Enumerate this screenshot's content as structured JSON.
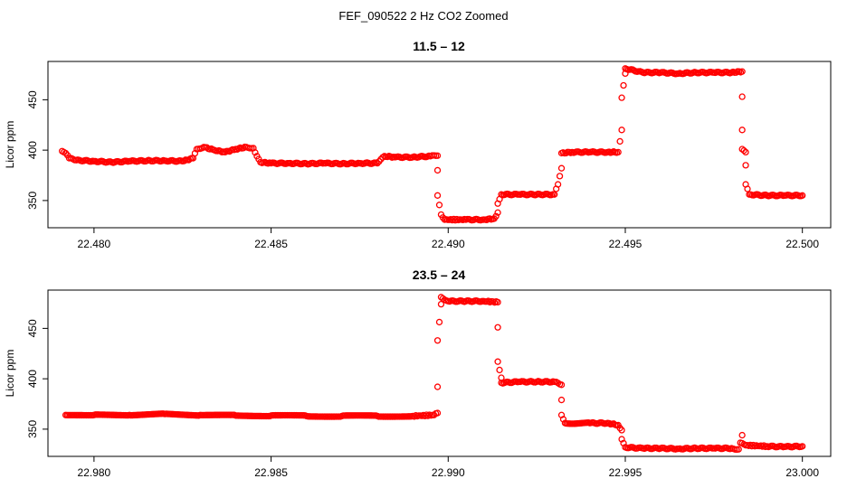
{
  "figure": {
    "suptitle": "FEF_090522  2 Hz CO2 Zoomed"
  },
  "chart_data": [
    {
      "type": "scatter",
      "title": "11.5 – 12",
      "xlabel": "",
      "ylabel": "Licor ppm",
      "xlim": [
        22.4787,
        22.5008
      ],
      "ylim": [
        323,
        488
      ],
      "x_ticks": [
        "22.480",
        "22.485",
        "22.490",
        "22.495",
        "22.500"
      ],
      "y_ticks": [
        "350",
        "400",
        "450"
      ],
      "grid": false,
      "marker": "open-circle",
      "color": "#ff0000",
      "series": [
        {
          "points": [
            [
              22.4791,
              399
            ],
            [
              22.4792,
              397
            ],
            [
              22.4793,
              392
            ],
            [
              22.4795,
              390
            ],
            [
              22.48,
              389
            ],
            [
              22.4805,
              388
            ],
            [
              22.481,
              389
            ],
            [
              22.4815,
              389.5
            ],
            [
              22.482,
              389.5
            ],
            [
              22.4825,
              389
            ],
            [
              22.4828,
              392
            ],
            [
              22.4829,
              401
            ],
            [
              22.4831,
              403
            ],
            [
              22.4834,
              400
            ],
            [
              22.4837,
              398
            ],
            [
              22.484,
              401
            ],
            [
              22.4843,
              403
            ],
            [
              22.4845,
              402
            ],
            [
              22.4846,
              394
            ],
            [
              22.4847,
              388
            ],
            [
              22.485,
              387
            ],
            [
              22.4855,
              387
            ],
            [
              22.486,
              386.5
            ],
            [
              22.4865,
              387
            ],
            [
              22.487,
              386.5
            ],
            [
              22.4875,
              387
            ],
            [
              22.488,
              387
            ],
            [
              22.4882,
              394
            ],
            [
              22.4885,
              393
            ],
            [
              22.489,
              393
            ],
            [
              22.4895,
              394
            ],
            [
              22.4897,
              394.5
            ],
            [
              22.4897,
              380
            ],
            [
              22.4897,
              355
            ],
            [
              22.4898,
              336
            ],
            [
              22.4899,
              331
            ],
            [
              22.4905,
              331
            ],
            [
              22.491,
              331
            ],
            [
              22.4913,
              332
            ],
            [
              22.4914,
              338
            ],
            [
              22.4914,
              347
            ],
            [
              22.4915,
              356
            ],
            [
              22.492,
              356
            ],
            [
              22.4925,
              356
            ],
            [
              22.493,
              356
            ],
            [
              22.4931,
              366
            ],
            [
              22.4932,
              382
            ],
            [
              22.4932,
              397
            ],
            [
              22.4935,
              398
            ],
            [
              22.494,
              398
            ],
            [
              22.4945,
              398
            ],
            [
              22.4948,
              398
            ],
            [
              22.4949,
              420
            ],
            [
              22.4949,
              452
            ],
            [
              22.495,
              476
            ],
            [
              22.495,
              481
            ],
            [
              22.4955,
              477
            ],
            [
              22.496,
              477
            ],
            [
              22.4965,
              476
            ],
            [
              22.497,
              477
            ],
            [
              22.4975,
              477
            ],
            [
              22.498,
              477
            ],
            [
              22.4983,
              478
            ],
            [
              22.4983,
              453
            ],
            [
              22.4983,
              420
            ],
            [
              22.4983,
              401
            ],
            [
              22.4984,
              398
            ],
            [
              22.4984,
              385
            ],
            [
              22.4984,
              366
            ],
            [
              22.4985,
              356
            ],
            [
              22.499,
              355
            ],
            [
              22.4995,
              355
            ],
            [
              22.5,
              355
            ]
          ]
        }
      ]
    },
    {
      "type": "scatter",
      "title": "23.5 – 24",
      "xlabel": "",
      "ylabel": "Licor ppm",
      "xlim": [
        22.9787,
        23.0008
      ],
      "ylim": [
        323,
        488
      ],
      "x_ticks": [
        "22.980",
        "22.985",
        "22.990",
        "22.995",
        "23.000"
      ],
      "y_ticks": [
        "350",
        "400",
        "450"
      ],
      "grid": false,
      "marker": "open-circle",
      "color": "#ff0000",
      "series": [
        {
          "points": [
            [
              22.9792,
              364
            ],
            [
              22.98,
              364
            ],
            [
              22.981,
              364
            ],
            [
              22.982,
              365
            ],
            [
              22.983,
              364
            ],
            [
              22.984,
              363.5
            ],
            [
              22.985,
              363.5
            ],
            [
              22.986,
              363
            ],
            [
              22.987,
              363
            ],
            [
              22.988,
              363
            ],
            [
              22.989,
              363
            ],
            [
              22.9896,
              364
            ],
            [
              22.9897,
              366
            ],
            [
              22.9897,
              392
            ],
            [
              22.9897,
              438
            ],
            [
              22.9898,
              474
            ],
            [
              22.9898,
              481
            ],
            [
              22.99,
              477
            ],
            [
              22.9905,
              477
            ],
            [
              22.991,
              477
            ],
            [
              22.9914,
              476
            ],
            [
              22.9914,
              451
            ],
            [
              22.9914,
              417
            ],
            [
              22.9915,
              401
            ],
            [
              22.9915,
              396
            ],
            [
              22.992,
              397
            ],
            [
              22.9925,
              397
            ],
            [
              22.993,
              397
            ],
            [
              22.9932,
              394
            ],
            [
              22.9932,
              379
            ],
            [
              22.9932,
              364
            ],
            [
              22.9933,
              356
            ],
            [
              22.994,
              356
            ],
            [
              22.9945,
              356
            ],
            [
              22.9948,
              354
            ],
            [
              22.9949,
              349
            ],
            [
              22.9949,
              340
            ],
            [
              22.995,
              332
            ],
            [
              22.9955,
              331
            ],
            [
              22.996,
              331
            ],
            [
              22.9965,
              330.5
            ],
            [
              22.997,
              331
            ],
            [
              22.9975,
              331
            ],
            [
              22.998,
              331
            ],
            [
              22.9982,
              330
            ],
            [
              22.9983,
              344
            ],
            [
              22.9983,
              336
            ],
            [
              22.9984,
              334
            ],
            [
              22.999,
              333
            ],
            [
              22.9995,
              332.5
            ],
            [
              23.0,
              333
            ]
          ]
        }
      ]
    }
  ]
}
